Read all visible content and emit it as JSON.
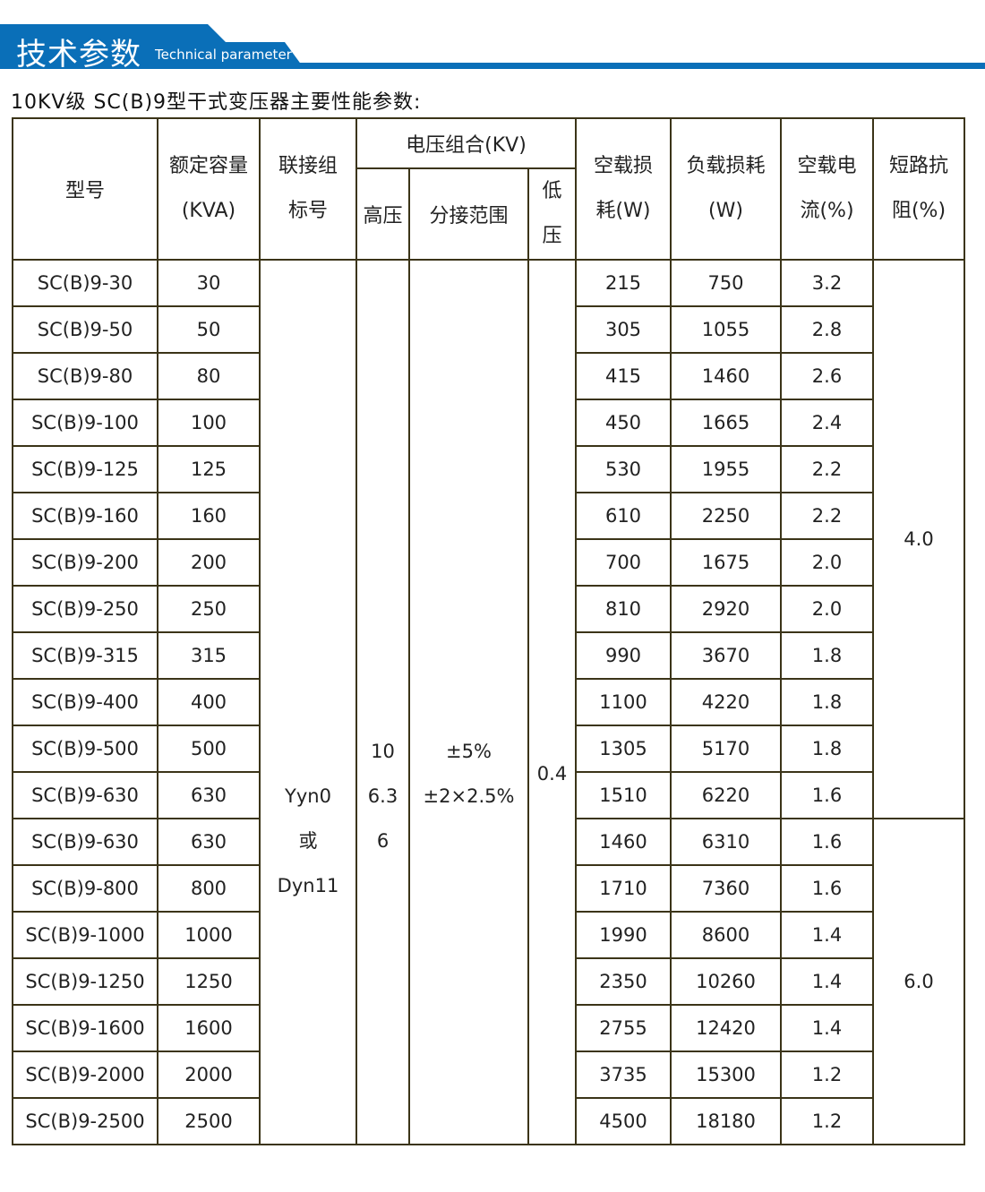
{
  "banner": {
    "title_cn": "技术参数",
    "title_en": "Technical parameter",
    "color": "#0a6fb8"
  },
  "subtitle": "10KV级 SC(B)9型干式变压器主要性能参数:",
  "headers": {
    "model": "型号",
    "capacity": [
      "额定容量",
      "(KVA)"
    ],
    "group": [
      "联接组",
      "标号"
    ],
    "voltage": "电压组合(KV)",
    "hv": "高压",
    "tap": "分接范围",
    "lv": [
      "低",
      "压"
    ],
    "noload_loss": [
      "空载损",
      "耗(W)"
    ],
    "load_loss": [
      "负载损耗",
      "(W)"
    ],
    "noload_current": [
      "空载电",
      "流(%)"
    ],
    "impedance": [
      "短路抗",
      "阻(%)"
    ]
  },
  "merged": {
    "group": [
      "Yyn0",
      "或",
      "Dyn11"
    ],
    "hv": [
      "10",
      "6.3",
      "6"
    ],
    "tap": [
      "±5%",
      "±2×2.5%"
    ],
    "lv": "0.4",
    "impedance": [
      "4.0",
      "6.0"
    ]
  },
  "rows": [
    [
      "SC(B)9-30",
      "30",
      "215",
      "750",
      "3.2"
    ],
    [
      "SC(B)9-50",
      "50",
      "305",
      "1055",
      "2.8"
    ],
    [
      "SC(B)9-80",
      "80",
      "415",
      "1460",
      "2.6"
    ],
    [
      "SC(B)9-100",
      "100",
      "450",
      "1665",
      "2.4"
    ],
    [
      "SC(B)9-125",
      "125",
      "530",
      "1955",
      "2.2"
    ],
    [
      "SC(B)9-160",
      "160",
      "610",
      "2250",
      "2.2"
    ],
    [
      "SC(B)9-200",
      "200",
      "700",
      "1675",
      "2.0"
    ],
    [
      "SC(B)9-250",
      "250",
      "810",
      "2920",
      "2.0"
    ],
    [
      "SC(B)9-315",
      "315",
      "990",
      "3670",
      "1.8"
    ],
    [
      "SC(B)9-400",
      "400",
      "1100",
      "4220",
      "1.8"
    ],
    [
      "SC(B)9-500",
      "500",
      "1305",
      "5170",
      "1.8"
    ],
    [
      "SC(B)9-630",
      "630",
      "1510",
      "6220",
      "1.6"
    ],
    [
      "SC(B)9-630",
      "630",
      "1460",
      "6310",
      "1.6"
    ],
    [
      "SC(B)9-800",
      "800",
      "1710",
      "7360",
      "1.6"
    ],
    [
      "SC(B)9-1000",
      "1000",
      "1990",
      "8600",
      "1.4"
    ],
    [
      "SC(B)9-1250",
      "1250",
      "2350",
      "10260",
      "1.4"
    ],
    [
      "SC(B)9-1600",
      "1600",
      "2755",
      "12420",
      "1.4"
    ],
    [
      "SC(B)9-2000",
      "2000",
      "3735",
      "15300",
      "1.2"
    ],
    [
      "SC(B)9-2500",
      "2500",
      "4500",
      "18180",
      "1.2"
    ]
  ]
}
